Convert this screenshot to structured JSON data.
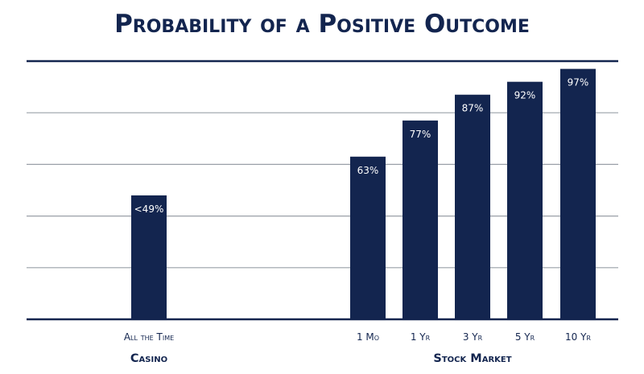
{
  "chart_data": {
    "type": "bar",
    "title": "Probability of a Positive Outcome",
    "categories": [
      "All the Time",
      "1 Mo",
      "1 Yr",
      "3 Yr",
      "5 Yr",
      "10 Yr"
    ],
    "values": [
      48,
      63,
      77,
      87,
      92,
      97
    ],
    "value_labels": [
      "<49%",
      "63%",
      "77%",
      "87%",
      "92%",
      "97%"
    ],
    "groups": [
      {
        "name": "Casino",
        "categories": [
          "All the Time"
        ]
      },
      {
        "name": "Stock Market",
        "categories": [
          "1 Mo",
          "1 Yr",
          "3 Yr",
          "5 Yr",
          "10 Yr"
        ]
      }
    ],
    "ylim": [
      0,
      100
    ],
    "grid": true,
    "legend": "none",
    "xlabel": "",
    "ylabel": "",
    "colors": {
      "bar": "#13254f",
      "grid": "#9aa0a8",
      "axis": "#13254f",
      "text": "#13254f"
    }
  }
}
